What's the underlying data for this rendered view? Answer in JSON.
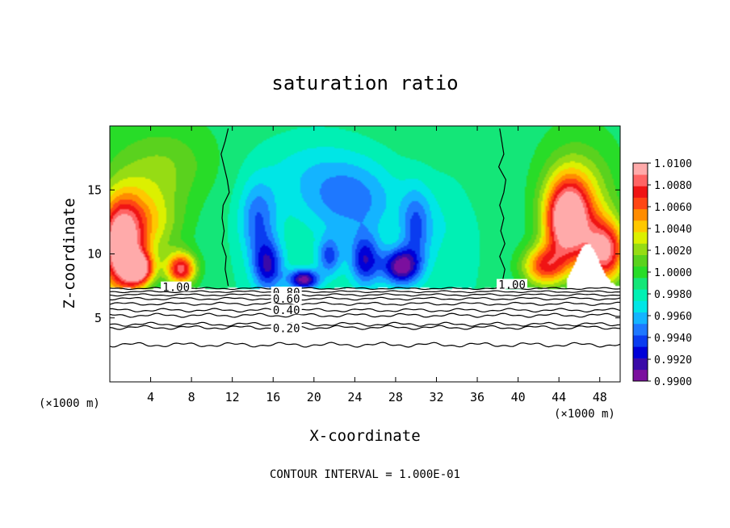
{
  "chart_data": {
    "type": "heatmap",
    "title": "saturation ratio",
    "xlabel": "X-coordinate",
    "ylabel": "Z-coordinate",
    "x_unit": "(×1000 m)",
    "xlim": [
      0,
      50
    ],
    "ylim": [
      0,
      20
    ],
    "x_ticks": [
      "4",
      "8",
      "12",
      "16",
      "20",
      "24",
      "28",
      "32",
      "36",
      "40",
      "44",
      "48"
    ],
    "y_ticks": [
      "5",
      "10",
      "15"
    ],
    "colorbar": {
      "range": [
        0.99,
        1.01
      ],
      "tick_labels": [
        "1.0100",
        "1.0080",
        "1.0060",
        "1.0040",
        "1.0020",
        "1.0000",
        "0.9980",
        "0.9960",
        "0.9940",
        "0.9920",
        "0.9900"
      ],
      "colors": [
        "#7b0f9e",
        "#3a0aa8",
        "#0000d8",
        "#0a3cf0",
        "#1e78ff",
        "#14b4ff",
        "#00e6e6",
        "#00f0b4",
        "#14e678",
        "#28dc28",
        "#5ad21e",
        "#96dc14",
        "#dcf000",
        "#ffc800",
        "#ff8c00",
        "#ff4614",
        "#f01414",
        "#ff6464",
        "#ffaaaa"
      ]
    },
    "contour_interval": "CONTOUR INTERVAL = 1.000E-01",
    "contour_labels": [
      {
        "text": "1.00",
        "x": 6.5,
        "z": 7.4
      },
      {
        "text": "0.80",
        "x": 17.3,
        "z": 7.0
      },
      {
        "text": "0.60",
        "x": 17.3,
        "z": 6.5
      },
      {
        "text": "0.40",
        "x": 17.3,
        "z": 5.6
      },
      {
        "text": "0.20",
        "x": 17.3,
        "z": 4.2
      },
      {
        "text": "1.00",
        "x": 39.4,
        "z": 7.6
      }
    ],
    "contours": [
      {
        "level": 1.0,
        "kind": "line",
        "points": [
          [
            11.6,
            19.8
          ],
          [
            11.3,
            18.8
          ],
          [
            10.9,
            17.8
          ],
          [
            11.2,
            16.8
          ],
          [
            11.5,
            15.8
          ],
          [
            11.7,
            14.8
          ],
          [
            11.1,
            13.8
          ],
          [
            11.0,
            12.8
          ],
          [
            11.2,
            11.8
          ],
          [
            11.0,
            10.8
          ],
          [
            11.4,
            9.8
          ],
          [
            11.3,
            8.8
          ],
          [
            11.6,
            7.5
          ]
        ]
      },
      {
        "level": 1.0,
        "kind": "line",
        "points": [
          [
            38.2,
            19.8
          ],
          [
            38.4,
            18.8
          ],
          [
            38.6,
            17.8
          ],
          [
            38.1,
            16.8
          ],
          [
            38.8,
            15.8
          ],
          [
            38.6,
            14.8
          ],
          [
            38.2,
            13.8
          ],
          [
            38.6,
            12.8
          ],
          [
            38.3,
            11.8
          ],
          [
            38.7,
            10.8
          ],
          [
            38.2,
            9.8
          ],
          [
            38.7,
            8.8
          ],
          [
            38.4,
            7.6
          ]
        ]
      },
      {
        "level": 1.0,
        "kind": "layer",
        "z": 7.3,
        "amp": 0.05
      },
      {
        "level": 0.9,
        "kind": "layer",
        "z": 7.05,
        "amp": 0.05
      },
      {
        "level": 0.8,
        "kind": "layer",
        "z": 6.8,
        "amp": 0.06
      },
      {
        "level": 0.7,
        "kind": "layer",
        "z": 6.5,
        "amp": 0.07
      },
      {
        "level": 0.6,
        "kind": "layer",
        "z": 6.1,
        "amp": 0.08
      },
      {
        "level": 0.5,
        "kind": "layer",
        "z": 5.6,
        "amp": 0.09
      },
      {
        "level": 0.4,
        "kind": "layer",
        "z": 5.2,
        "amp": 0.1
      },
      {
        "level": 0.3,
        "kind": "layer",
        "z": 4.5,
        "amp": 0.1
      },
      {
        "level": 0.2,
        "kind": "layer",
        "z": 4.25,
        "amp": 0.1
      },
      {
        "level": 0.1,
        "kind": "layer",
        "z": 2.9,
        "amp": 0.12
      }
    ],
    "field_features": [
      {
        "value": 1.01,
        "x": 1.0,
        "z": 10.5,
        "sx": 2.2,
        "sz": 3.8
      },
      {
        "value": 1.0085,
        "x": 2.8,
        "z": 8.8,
        "sx": 1.5,
        "sz": 1.3
      },
      {
        "value": 1.008,
        "x": 7.0,
        "z": 8.8,
        "sx": 1.5,
        "sz": 1.3
      },
      {
        "value": 1.0035,
        "x": 3.5,
        "z": 12.5,
        "sx": 3.5,
        "sz": 3.0
      },
      {
        "value": 1.0015,
        "x": 5.0,
        "z": 17.0,
        "sx": 5.0,
        "sz": 3.0
      },
      {
        "value": 1.01,
        "x": 44.8,
        "z": 12.5,
        "sx": 2.2,
        "sz": 3.2
      },
      {
        "value": 1.009,
        "x": 48.5,
        "z": 10.2,
        "sx": 2.0,
        "sz": 2.5
      },
      {
        "value": 1.006,
        "x": 42.5,
        "z": 9.0,
        "sx": 2.2,
        "sz": 1.6
      },
      {
        "value": 1.003,
        "x": 46.0,
        "z": 14.5,
        "sx": 3.5,
        "sz": 4.0
      },
      {
        "value": 0.9945,
        "x": 14.5,
        "z": 12.5,
        "sx": 1.8,
        "sz": 3.0
      },
      {
        "value": 0.9925,
        "x": 15.5,
        "z": 9.0,
        "sx": 1.5,
        "sz": 2.0
      },
      {
        "value": 0.9905,
        "x": 19.0,
        "z": 8.0,
        "sx": 1.5,
        "sz": 0.8
      },
      {
        "value": 0.9925,
        "x": 25.0,
        "z": 9.5,
        "sx": 1.5,
        "sz": 2.0
      },
      {
        "value": 0.9905,
        "x": 28.5,
        "z": 9.0,
        "sx": 1.8,
        "sz": 1.4
      },
      {
        "value": 0.994,
        "x": 21.5,
        "z": 9.8,
        "sx": 1.2,
        "sz": 1.5
      },
      {
        "value": 0.9945,
        "x": 30.0,
        "z": 12.0,
        "sx": 1.5,
        "sz": 3.0
      },
      {
        "value": 0.9955,
        "x": 24.0,
        "z": 14.0,
        "sx": 4.5,
        "sz": 3.0
      },
      {
        "value": 0.9968,
        "x": 20.0,
        "z": 16.0,
        "sx": 6.0,
        "sz": 3.5
      },
      {
        "value": 0.9975,
        "x": 33.0,
        "z": 12.0,
        "sx": 2.8,
        "sz": 4.0
      },
      {
        "value": 0.999,
        "x": 35.5,
        "z": 16.0,
        "sx": 2.5,
        "sz": 3.0
      }
    ]
  }
}
